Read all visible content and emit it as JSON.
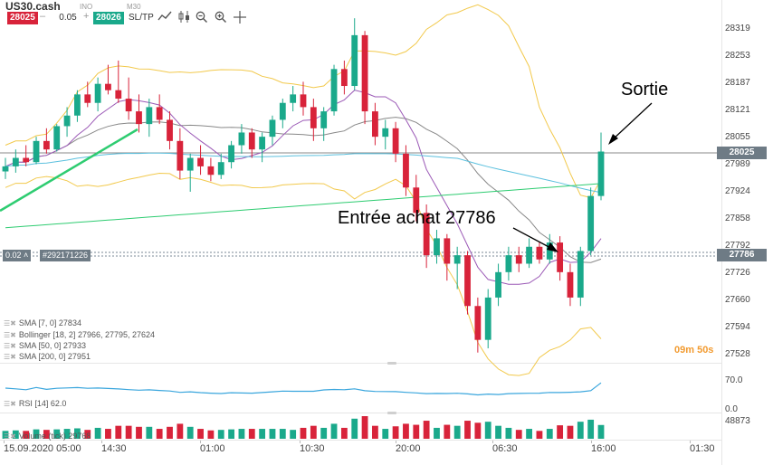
{
  "toolbar": {
    "symbol": "US30.cash",
    "market_state": "INO",
    "timeframe": "M30",
    "sell_price": "28025",
    "buy_price": "28026",
    "volume": "0.05",
    "minus": "–",
    "plus": "+",
    "sl_tp": "SL/TP",
    "icons": [
      "line-chart-icon",
      "candle-chart-icon",
      "zoom-out-icon",
      "zoom-in-icon",
      "crosshair-icon"
    ]
  },
  "colors": {
    "bull": "#1aa98b",
    "bear": "#d8233a",
    "sma7": "#9b59b6",
    "bollinger": "#f2c94c",
    "sma50": "#5bc0de",
    "sma200": "#2ecc71",
    "tag_grey": "#6e7b85",
    "timer": "#f29b30"
  },
  "price_axis": {
    "ticks": [
      "28319",
      "28253",
      "28187",
      "28121",
      "28055",
      "27989",
      "27924",
      "27858",
      "27792",
      "27726",
      "27660",
      "27594",
      "27528"
    ],
    "last_price_tag": "28025",
    "entry_price_tag": "27786"
  },
  "order_line": {
    "lot": "0.02",
    "lot_icon": "chevron-up-icon",
    "ticket": "#292171226"
  },
  "time_axis": {
    "labels": [
      "15.09.2020 05:00",
      "14:30",
      "01:00",
      "10:30",
      "20:00",
      "06:30",
      "16:00",
      "01:30"
    ]
  },
  "indicators": [
    {
      "label": "SMA [7, 0]",
      "value": "27834"
    },
    {
      "label": "Bollinger [18, 2]",
      "value": "27966, 27795, 27624"
    },
    {
      "label": "SMA [50, 0]",
      "value": "27933"
    },
    {
      "label": "SMA [200, 0]",
      "value": "27951"
    }
  ],
  "rsi": {
    "label": "RSI [14]",
    "value": "62.0",
    "ticks": [
      "70.0",
      "0.0"
    ]
  },
  "volume": {
    "label": "Volume (tick)",
    "value": "29768",
    "tick": "48873"
  },
  "countdown": "09m 50s",
  "annotations": {
    "exit": "Sortie",
    "entry": "Entrée achat 27786"
  },
  "chart_data": {
    "type": "candlestick",
    "symbol": "US30.cash",
    "timeframe": "M30",
    "y_range": [
      27528,
      28319
    ],
    "last_price": 28025,
    "entry_price": 27786,
    "candles": [
      {
        "o": 27978,
        "h": 28010,
        "l": 27960,
        "c": 27990
      },
      {
        "o": 27990,
        "h": 28030,
        "l": 27975,
        "c": 28010
      },
      {
        "o": 28010,
        "h": 28040,
        "l": 27990,
        "c": 28000
      },
      {
        "o": 28000,
        "h": 28060,
        "l": 27995,
        "c": 28050
      },
      {
        "o": 28050,
        "h": 28080,
        "l": 28020,
        "c": 28030
      },
      {
        "o": 28030,
        "h": 28090,
        "l": 28025,
        "c": 28085
      },
      {
        "o": 28085,
        "h": 28130,
        "l": 28060,
        "c": 28110
      },
      {
        "o": 28110,
        "h": 28170,
        "l": 28095,
        "c": 28160
      },
      {
        "o": 28160,
        "h": 28190,
        "l": 28130,
        "c": 28140
      },
      {
        "o": 28140,
        "h": 28200,
        "l": 28120,
        "c": 28185
      },
      {
        "o": 28185,
        "h": 28230,
        "l": 28160,
        "c": 28170
      },
      {
        "o": 28170,
        "h": 28240,
        "l": 28140,
        "c": 28150
      },
      {
        "o": 28150,
        "h": 28200,
        "l": 28100,
        "c": 28120
      },
      {
        "o": 28120,
        "h": 28160,
        "l": 28070,
        "c": 28090
      },
      {
        "o": 28090,
        "h": 28150,
        "l": 28060,
        "c": 28130
      },
      {
        "o": 28130,
        "h": 28160,
        "l": 28090,
        "c": 28100
      },
      {
        "o": 28100,
        "h": 28120,
        "l": 28030,
        "c": 28050
      },
      {
        "o": 28050,
        "h": 28080,
        "l": 27960,
        "c": 27980
      },
      {
        "o": 27980,
        "h": 28020,
        "l": 27930,
        "c": 28010
      },
      {
        "o": 28010,
        "h": 28040,
        "l": 27970,
        "c": 27990
      },
      {
        "o": 27990,
        "h": 28010,
        "l": 27955,
        "c": 27970
      },
      {
        "o": 27970,
        "h": 28020,
        "l": 27960,
        "c": 28000
      },
      {
        "o": 28000,
        "h": 28050,
        "l": 27985,
        "c": 28040
      },
      {
        "o": 28040,
        "h": 28090,
        "l": 28020,
        "c": 28070
      },
      {
        "o": 28070,
        "h": 28080,
        "l": 28010,
        "c": 28030
      },
      {
        "o": 28030,
        "h": 28070,
        "l": 28000,
        "c": 28060
      },
      {
        "o": 28060,
        "h": 28110,
        "l": 28040,
        "c": 28100
      },
      {
        "o": 28100,
        "h": 28150,
        "l": 28080,
        "c": 28140
      },
      {
        "o": 28140,
        "h": 28180,
        "l": 28120,
        "c": 28160
      },
      {
        "o": 28160,
        "h": 28190,
        "l": 28110,
        "c": 28130
      },
      {
        "o": 28130,
        "h": 28150,
        "l": 28050,
        "c": 28080
      },
      {
        "o": 28080,
        "h": 28130,
        "l": 28050,
        "c": 28120
      },
      {
        "o": 28120,
        "h": 28230,
        "l": 28110,
        "c": 28220
      },
      {
        "o": 28220,
        "h": 28240,
        "l": 28160,
        "c": 28180
      },
      {
        "o": 28180,
        "h": 28340,
        "l": 28170,
        "c": 28300
      },
      {
        "o": 28300,
        "h": 28310,
        "l": 28090,
        "c": 28120
      },
      {
        "o": 28120,
        "h": 28140,
        "l": 28040,
        "c": 28060
      },
      {
        "o": 28060,
        "h": 28100,
        "l": 28030,
        "c": 28080
      },
      {
        "o": 28080,
        "h": 28095,
        "l": 28000,
        "c": 28020
      },
      {
        "o": 28020,
        "h": 28040,
        "l": 27920,
        "c": 27940
      },
      {
        "o": 27940,
        "h": 27970,
        "l": 27860,
        "c": 27880
      },
      {
        "o": 27880,
        "h": 27900,
        "l": 27750,
        "c": 27780
      },
      {
        "o": 27780,
        "h": 27840,
        "l": 27760,
        "c": 27820
      },
      {
        "o": 27820,
        "h": 27830,
        "l": 27720,
        "c": 27760
      },
      {
        "o": 27760,
        "h": 27800,
        "l": 27700,
        "c": 27780
      },
      {
        "o": 27780,
        "h": 27790,
        "l": 27640,
        "c": 27660
      },
      {
        "o": 27660,
        "h": 27680,
        "l": 27550,
        "c": 27580
      },
      {
        "o": 27580,
        "h": 27700,
        "l": 27560,
        "c": 27680
      },
      {
        "o": 27680,
        "h": 27760,
        "l": 27660,
        "c": 27740
      },
      {
        "o": 27740,
        "h": 27800,
        "l": 27720,
        "c": 27780
      },
      {
        "o": 27780,
        "h": 27800,
        "l": 27740,
        "c": 27760
      },
      {
        "o": 27760,
        "h": 27820,
        "l": 27750,
        "c": 27800
      },
      {
        "o": 27800,
        "h": 27810,
        "l": 27760,
        "c": 27770
      },
      {
        "o": 27770,
        "h": 27830,
        "l": 27760,
        "c": 27810
      },
      {
        "o": 27810,
        "h": 27825,
        "l": 27720,
        "c": 27740
      },
      {
        "o": 27740,
        "h": 27760,
        "l": 27660,
        "c": 27680
      },
      {
        "o": 27680,
        "h": 27800,
        "l": 27660,
        "c": 27790
      },
      {
        "o": 27790,
        "h": 27940,
        "l": 27780,
        "c": 27920
      },
      {
        "o": 27920,
        "h": 28070,
        "l": 27910,
        "c": 28025
      }
    ],
    "series": [
      {
        "name": "SMA [7, 0]",
        "last": 27834
      },
      {
        "name": "Bollinger [18, 2]",
        "last": [
          27966,
          27795,
          27624
        ]
      },
      {
        "name": "SMA [50, 0]",
        "last": 27933
      },
      {
        "name": "SMA [200, 0]",
        "last": 27951
      }
    ],
    "rsi": {
      "name": "RSI [14]",
      "last": 62.0,
      "ticks": [
        70.0,
        0.0
      ]
    },
    "volume": {
      "name": "Volume (tick)",
      "last": 29768,
      "max_tick": 48873
    }
  }
}
